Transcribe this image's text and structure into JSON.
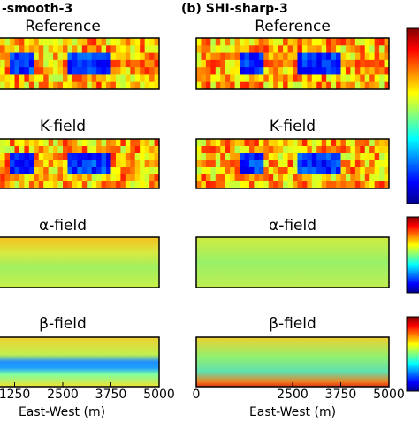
{
  "chart_data": {
    "type": "heatmap",
    "panel_titles": [
      "-smooth-3",
      "(b) SHI-sharp-3"
    ],
    "rows": [
      "Reference",
      "K-field",
      "α-field",
      "β-field"
    ],
    "xlim": [
      0,
      5000
    ],
    "xticks_left": [
      1250,
      2500,
      3750,
      5000
    ],
    "xticks_right": [
      0,
      2500,
      3750,
      5000
    ],
    "xlabel": "East-West (m)"
  }
}
